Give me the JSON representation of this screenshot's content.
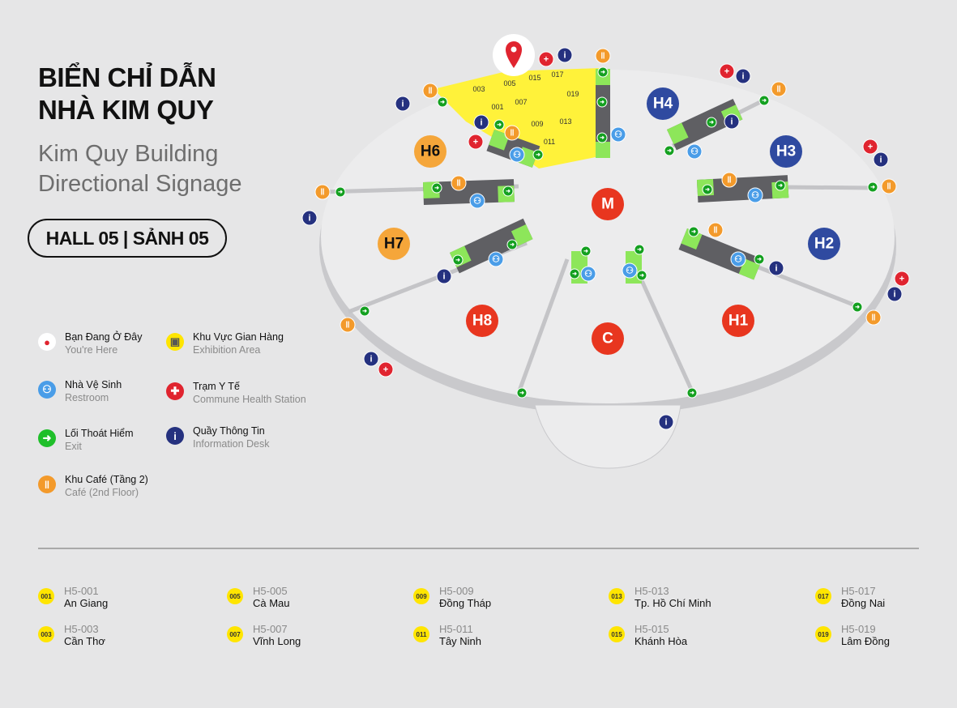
{
  "header": {
    "title_line1": "BIỂN CHỈ DẪN",
    "title_line2": "NHÀ KIM QUY",
    "subtitle_line1": "Kim Quy Building",
    "subtitle_line2": "Directional Signage",
    "hall_label": "HALL 05 | SẢNH 05"
  },
  "legend": [
    {
      "icon": "location-pin-icon",
      "vi": "Bạn Đang Ở Đây",
      "en": "You're Here",
      "color": "#ffffff"
    },
    {
      "icon": "exhibition-area-icon",
      "vi": "Khu Vực Gian Hàng",
      "en": "Exhibition Area",
      "color": "#ffe500"
    },
    {
      "icon": "restroom-icon",
      "vi": "Nhà Vệ Sinh",
      "en": "Restroom",
      "color": "#4a9de8"
    },
    {
      "icon": "health-station-icon",
      "vi": "Trạm Y Tế",
      "en": "Commune Health Station",
      "color": "#e0242f"
    },
    {
      "icon": "exit-icon",
      "vi": "Lối Thoát Hiểm",
      "en": "Exit",
      "color": "#1fbf2a"
    },
    {
      "icon": "info-desk-icon",
      "vi": "Quầy Thông Tin",
      "en": "Information Desk",
      "color": "#25317f"
    },
    {
      "icon": "cafe-icon",
      "vi": "Khu Café (Tầng 2)",
      "en": "Café (2nd Floor)",
      "color": "#f39a2b"
    }
  ],
  "map": {
    "halls": [
      {
        "label": "H4",
        "color": "#2f4aa0"
      },
      {
        "label": "H3",
        "color": "#2f4aa0"
      },
      {
        "label": "H2",
        "color": "#2f4aa0"
      },
      {
        "label": "H1",
        "color": "#e8361f"
      },
      {
        "label": "C",
        "color": "#e8361f"
      },
      {
        "label": "H8",
        "color": "#e8361f"
      },
      {
        "label": "H7",
        "color": "#f5a63a"
      },
      {
        "label": "H6",
        "color": "#f5a63a"
      },
      {
        "label": "M",
        "color": "#e8361f"
      }
    ],
    "booth_numbers": [
      "003",
      "005",
      "015",
      "017",
      "001",
      "007",
      "019",
      "009",
      "013",
      "011"
    ]
  },
  "booths": [
    {
      "num": "001",
      "code": "H5-001",
      "name": "An Giang"
    },
    {
      "num": "003",
      "code": "H5-003",
      "name": "Cần Thơ"
    },
    {
      "num": "005",
      "code": "H5-005",
      "name": "Cà Mau"
    },
    {
      "num": "007",
      "code": "H5-007",
      "name": "Vĩnh Long"
    },
    {
      "num": "009",
      "code": "H5-009",
      "name": "Đồng Tháp"
    },
    {
      "num": "011",
      "code": "H5-011",
      "name": "Tây Ninh"
    },
    {
      "num": "013",
      "code": "H5-013",
      "name": "Tp. Hồ Chí Minh"
    },
    {
      "num": "015",
      "code": "H5-015",
      "name": "Khánh Hòa"
    },
    {
      "num": "017",
      "code": "H5-017",
      "name": "Đồng Nai"
    },
    {
      "num": "019",
      "code": "H5-019",
      "name": "Lâm Đồng"
    }
  ]
}
